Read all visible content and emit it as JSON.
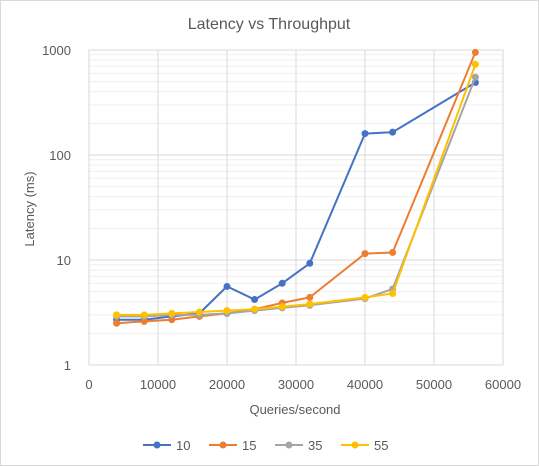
{
  "chart_data": {
    "type": "line",
    "title": "Latency vs Throughput",
    "xlabel": "Queries/second",
    "ylabel": "Latency (ms)",
    "xlim": [
      0,
      60000
    ],
    "ylim": [
      1,
      1000
    ],
    "y_scale": "log",
    "x_ticks": [
      "0",
      "10000",
      "20000",
      "30000",
      "40000",
      "50000",
      "60000"
    ],
    "y_ticks": [
      "1",
      "10",
      "100",
      "1000"
    ],
    "grid": true,
    "legend_position": "bottom",
    "series": [
      {
        "name": "10",
        "color": "#4472C4",
        "x": [
          4000,
          8000,
          12000,
          16000,
          20000,
          24000,
          28000,
          32000,
          40000,
          44000,
          56000
        ],
        "y": [
          2.7,
          2.7,
          2.9,
          3.1,
          5.6,
          4.2,
          6.0,
          9.3,
          160,
          165,
          490
        ]
      },
      {
        "name": "15",
        "color": "#ED7D31",
        "x": [
          4000,
          8000,
          12000,
          16000,
          20000,
          24000,
          28000,
          32000,
          40000,
          44000,
          56000
        ],
        "y": [
          2.5,
          2.6,
          2.7,
          2.9,
          3.1,
          3.4,
          3.9,
          4.4,
          11.5,
          11.8,
          950
        ]
      },
      {
        "name": "35",
        "color": "#A5A5A5",
        "x": [
          4000,
          8000,
          12000,
          16000,
          20000,
          24000,
          28000,
          32000,
          40000,
          44000,
          56000
        ],
        "y": [
          2.9,
          2.9,
          3.0,
          3.0,
          3.1,
          3.3,
          3.5,
          3.7,
          4.3,
          5.3,
          550
        ]
      },
      {
        "name": "55",
        "color": "#FFC000",
        "x": [
          4000,
          8000,
          12000,
          16000,
          20000,
          24000,
          28000,
          32000,
          40000,
          44000,
          56000
        ],
        "y": [
          3.0,
          3.0,
          3.1,
          3.2,
          3.3,
          3.4,
          3.6,
          3.8,
          4.4,
          4.8,
          730
        ]
      }
    ]
  }
}
